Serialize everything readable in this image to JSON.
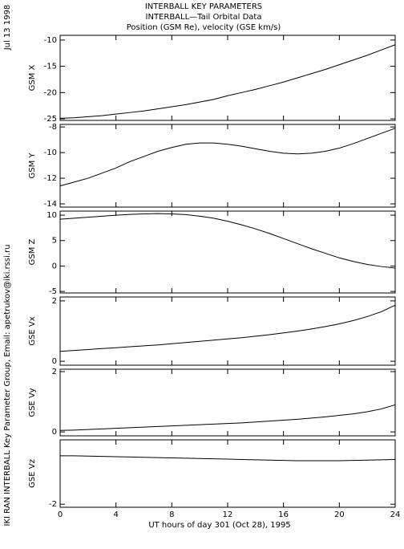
{
  "date": "Jul 13 1998",
  "credit": "IKI RAN INTERBALL Key Parameter Group, Email: apetrukov@iki.rssi.ru",
  "chart_data": [
    {
      "type": "line",
      "title": [
        "INTERBALL KEY PARAMETERS",
        "INTERBALL—Tail Orbital Data",
        "Position (GSM Re), velocity (GSE km/s)"
      ],
      "ylabel": "GSM X",
      "ylim": [
        -25.3,
        -9.1
      ],
      "yticks": [
        -10,
        -15,
        -20,
        -25
      ],
      "xlim": [
        0,
        24
      ],
      "x": [
        0,
        1,
        2,
        3,
        4,
        5,
        6,
        7,
        8,
        9,
        10,
        11,
        12,
        13,
        14,
        15,
        16,
        17,
        18,
        19,
        20,
        21,
        22,
        23,
        24
      ],
      "series": [
        {
          "color": "#000000",
          "values": [
            -24.9,
            -24.8,
            -24.6,
            -24.4,
            -24.1,
            -23.8,
            -23.5,
            -23.1,
            -22.7,
            -22.3,
            -21.8,
            -21.3,
            -20.6,
            -20.0,
            -19.4,
            -18.7,
            -18.0,
            -17.2,
            -16.4,
            -15.6,
            -14.7,
            -13.8,
            -12.9,
            -11.9,
            -10.9
          ]
        }
      ]
    },
    {
      "type": "line",
      "ylabel": "GSM Y",
      "ylim": [
        -14.25,
        -7.8
      ],
      "yticks": [
        -8,
        -10,
        -12,
        -14
      ],
      "xlim": [
        0,
        24
      ],
      "x": [
        0,
        1,
        2,
        3,
        4,
        5,
        6,
        7,
        8,
        9,
        10,
        11,
        12,
        13,
        14,
        15,
        16,
        17,
        18,
        19,
        20,
        21,
        22,
        23,
        24
      ],
      "series": [
        {
          "color": "#000000",
          "values": [
            -12.6,
            -12.3,
            -12.0,
            -11.6,
            -11.2,
            -10.7,
            -10.3,
            -9.9,
            -9.6,
            -9.35,
            -9.25,
            -9.25,
            -9.35,
            -9.5,
            -9.7,
            -9.9,
            -10.05,
            -10.1,
            -10.05,
            -9.9,
            -9.65,
            -9.3,
            -8.9,
            -8.5,
            -8.1
          ]
        }
      ]
    },
    {
      "type": "line",
      "ylabel": "GSM Z",
      "ylim": [
        -5.3,
        10.8
      ],
      "yticks": [
        10,
        5,
        0,
        -5
      ],
      "xlim": [
        0,
        24
      ],
      "x": [
        0,
        1,
        2,
        3,
        4,
        5,
        6,
        7,
        8,
        9,
        10,
        11,
        12,
        13,
        14,
        15,
        16,
        17,
        18,
        19,
        20,
        21,
        22,
        23,
        24
      ],
      "series": [
        {
          "color": "#000000",
          "values": [
            9.2,
            9.4,
            9.6,
            9.8,
            10.0,
            10.15,
            10.25,
            10.3,
            10.25,
            10.1,
            9.8,
            9.4,
            8.8,
            8.1,
            7.3,
            6.4,
            5.4,
            4.4,
            3.4,
            2.5,
            1.6,
            0.9,
            0.3,
            -0.1,
            -0.4
          ]
        }
      ]
    },
    {
      "type": "line",
      "ylabel": "GSE Vx",
      "ylim": [
        -0.13,
        2.13
      ],
      "yticks": [
        2,
        0
      ],
      "xlim": [
        0,
        24
      ],
      "x": [
        0,
        1,
        2,
        3,
        4,
        5,
        6,
        7,
        8,
        9,
        10,
        11,
        12,
        13,
        14,
        15,
        16,
        17,
        18,
        19,
        20,
        21,
        22,
        23,
        24
      ],
      "series": [
        {
          "color": "#000000",
          "values": [
            0.33,
            0.36,
            0.39,
            0.42,
            0.45,
            0.48,
            0.51,
            0.54,
            0.58,
            0.62,
            0.66,
            0.7,
            0.74,
            0.78,
            0.83,
            0.88,
            0.94,
            1.0,
            1.07,
            1.15,
            1.24,
            1.35,
            1.48,
            1.64,
            1.86
          ]
        }
      ]
    },
    {
      "type": "line",
      "ylabel": "GSE Vy",
      "ylim": [
        -0.13,
        2.08
      ],
      "yticks": [
        2,
        0
      ],
      "xlim": [
        0,
        24
      ],
      "x": [
        0,
        1,
        2,
        3,
        4,
        5,
        6,
        7,
        8,
        9,
        10,
        11,
        12,
        13,
        14,
        15,
        16,
        17,
        18,
        19,
        20,
        21,
        22,
        23,
        24
      ],
      "series": [
        {
          "color": "#000000",
          "values": [
            0.05,
            0.06,
            0.08,
            0.1,
            0.12,
            0.14,
            0.16,
            0.18,
            0.2,
            0.22,
            0.24,
            0.26,
            0.28,
            0.3,
            0.33,
            0.36,
            0.39,
            0.42,
            0.46,
            0.5,
            0.55,
            0.6,
            0.67,
            0.76,
            0.9
          ]
        }
      ]
    },
    {
      "type": "line",
      "ylabel": "GSE Vz",
      "ylim": [
        -2.1,
        0.1
      ],
      "yticks": [
        -2
      ],
      "xlim": [
        0,
        24
      ],
      "xticks": [
        0,
        4,
        8,
        12,
        16,
        20,
        24
      ],
      "xlabel": "UT hours of day 301 (Oct 28), 1995",
      "x": [
        0,
        1,
        2,
        3,
        4,
        5,
        6,
        7,
        8,
        9,
        10,
        11,
        12,
        13,
        14,
        15,
        16,
        17,
        18,
        19,
        20,
        21,
        22,
        23,
        24
      ],
      "series": [
        {
          "color": "#000000",
          "values": [
            -0.42,
            -0.42,
            -0.43,
            -0.44,
            -0.45,
            -0.46,
            -0.47,
            -0.48,
            -0.49,
            -0.5,
            -0.51,
            -0.52,
            -0.53,
            -0.54,
            -0.55,
            -0.56,
            -0.57,
            -0.58,
            -0.58,
            -0.58,
            -0.58,
            -0.57,
            -0.56,
            -0.55,
            -0.54
          ]
        }
      ]
    }
  ]
}
